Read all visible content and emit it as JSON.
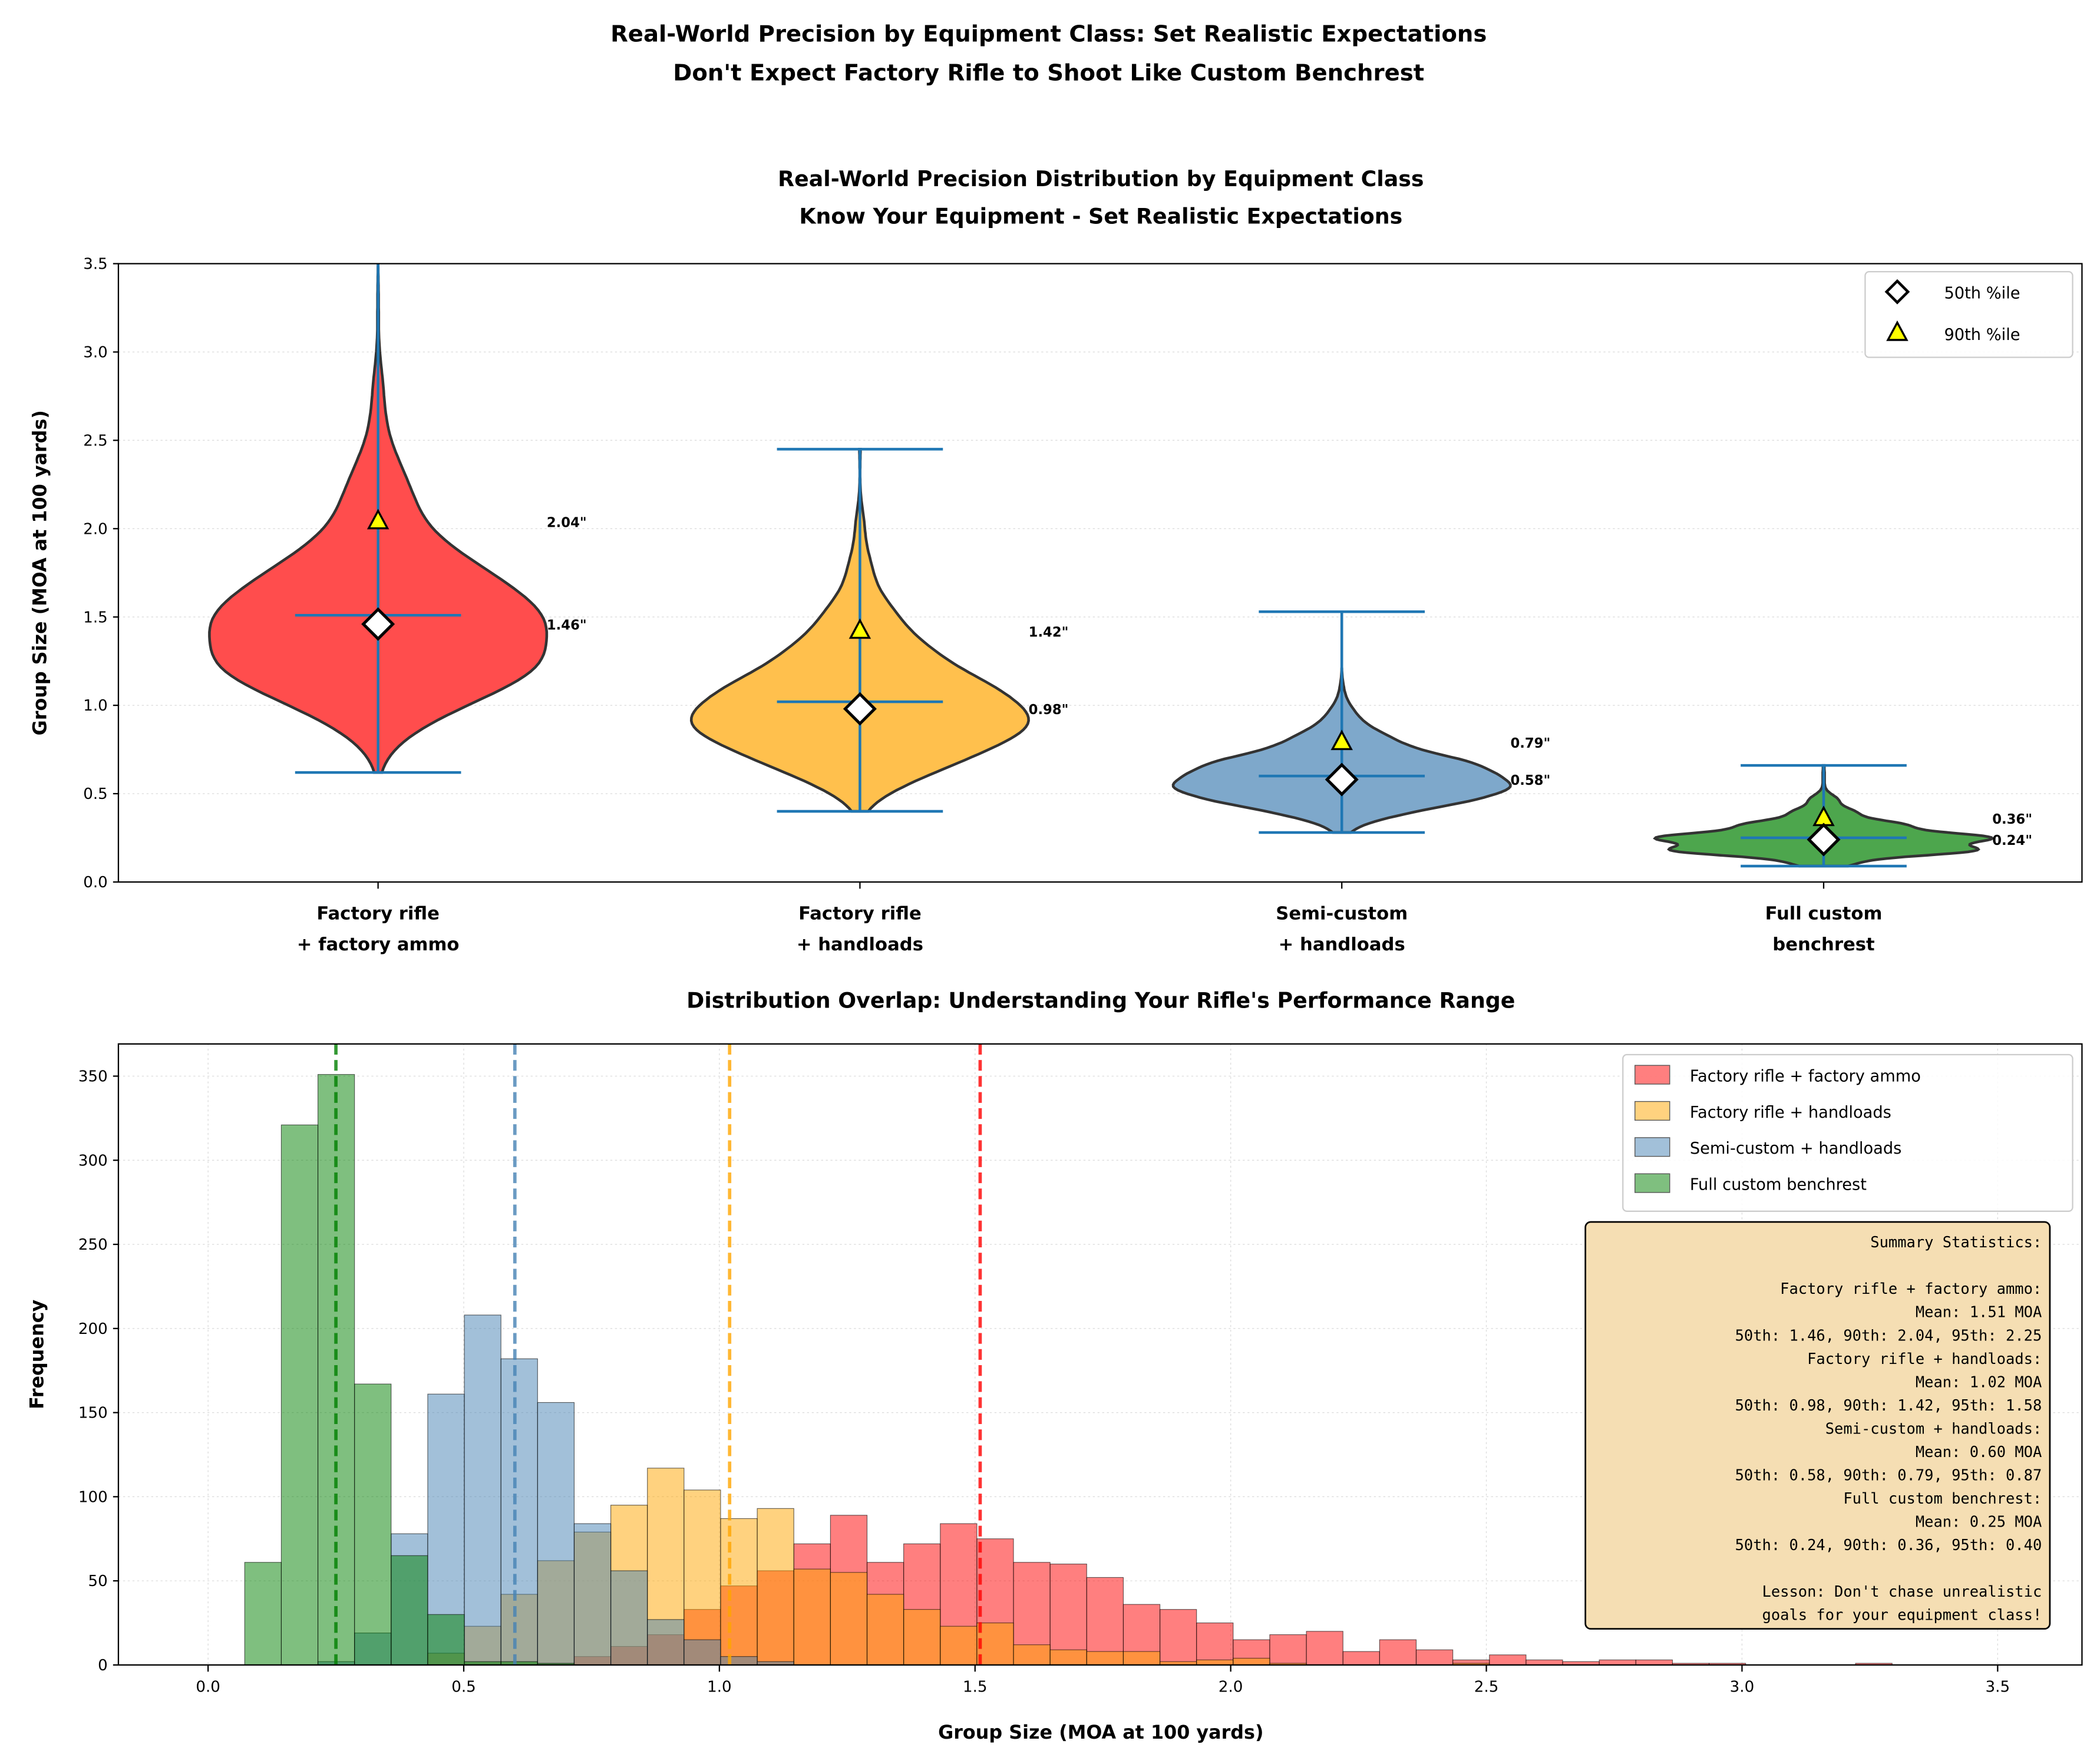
{
  "figure": {
    "title_line1": "Real-World Precision by Equipment Class: Set Realistic Expectations",
    "title_line2": "Don't Expect Factory Rifle to Shoot Like Custom Benchrest"
  },
  "colors": {
    "red": "#ff0000",
    "orange": "#ffa500",
    "steelblue": "#4682b4",
    "green": "#008000",
    "stat_line": "#1f77b4",
    "summary_box": "#f5deb3"
  },
  "chart_data": [
    {
      "type": "violin",
      "title_line1": "Real-World Precision Distribution by Equipment Class",
      "title_line2": "Know Your Equipment - Set Realistic Expectations",
      "xlabel": "",
      "ylabel": "Group Size (MOA at 100 yards)",
      "ylim": [
        0,
        3.5
      ],
      "yticks": [
        "0.0",
        "0.5",
        "1.0",
        "1.5",
        "2.0",
        "2.5",
        "3.0",
        "3.5"
      ],
      "grid": true,
      "legend_position": "top-right",
      "legend": [
        {
          "label": "50th %ile",
          "marker": "diamond"
        },
        {
          "label": "90th %ile",
          "marker": "triangle"
        }
      ],
      "categories": [
        {
          "line1": "Factory rifle",
          "line2": "+ factory ammo",
          "color": "#ff0000",
          "min": 0.62,
          "max": 3.6,
          "mean": 1.51,
          "p50": 1.46,
          "p90": 2.04,
          "p50_label": "1.46\"",
          "p90_label": "2.04\""
        },
        {
          "line1": "Factory rifle",
          "line2": "+ handloads",
          "color": "#ffa500",
          "min": 0.4,
          "max": 2.45,
          "mean": 1.02,
          "p50": 0.98,
          "p90": 1.42,
          "p50_label": "0.98\"",
          "p90_label": "1.42\""
        },
        {
          "line1": "Semi-custom",
          "line2": "+ handloads",
          "color": "#4682b4",
          "min": 0.28,
          "max": 1.53,
          "mean": 0.6,
          "p50": 0.58,
          "p90": 0.79,
          "p50_label": "0.58\"",
          "p90_label": "0.79\""
        },
        {
          "line1": "Full custom",
          "line2": "benchrest",
          "color": "#008000",
          "min": 0.09,
          "max": 0.66,
          "mean": 0.25,
          "p50": 0.24,
          "p90": 0.36,
          "p50_label": "0.24\"",
          "p90_label": "0.36\""
        }
      ]
    },
    {
      "type": "histogram",
      "title": "Distribution Overlap: Understanding Your Rifle's Performance Range",
      "xlabel": "Group Size (MOA at 100 yards)",
      "ylabel": "Frequency",
      "xlim": [
        -0.2,
        3.65
      ],
      "ylim": [
        0,
        370
      ],
      "xticks": [
        "0.0",
        "0.5",
        "1.0",
        "1.5",
        "2.0",
        "2.5",
        "3.0",
        "3.5"
      ],
      "yticks": [
        "0",
        "50",
        "100",
        "150",
        "200",
        "250",
        "300",
        "350"
      ],
      "grid": true,
      "legend_position": "top-right",
      "bin_width": 0.0716,
      "series": [
        {
          "name": "Factory rifle + factory ammo",
          "color": "#ff0000",
          "mean": 1.51,
          "counts": [
            0,
            0,
            0,
            0,
            0,
            0,
            0,
            0,
            0,
            0,
            5,
            11,
            18,
            33,
            47,
            56,
            72,
            89,
            61,
            72,
            84,
            75,
            61,
            60,
            52,
            36,
            33,
            25,
            15,
            18,
            20,
            8,
            15,
            9,
            3,
            6,
            3,
            2,
            3,
            3,
            1,
            1,
            0,
            0,
            0,
            1
          ]
        },
        {
          "name": "Factory rifle + handloads",
          "color": "#ffa500",
          "mean": 1.02,
          "counts": [
            0,
            0,
            0,
            0,
            0,
            0,
            7,
            23,
            42,
            62,
            79,
            95,
            117,
            104,
            87,
            93,
            57,
            55,
            42,
            33,
            23,
            25,
            12,
            9,
            8,
            8,
            2,
            3,
            4,
            1,
            0,
            0,
            0,
            0,
            1,
            0,
            0,
            0,
            0,
            0,
            0,
            0,
            0,
            0,
            0,
            0
          ]
        },
        {
          "name": "Semi-custom + handloads",
          "color": "#4682b4",
          "mean": 0.6,
          "counts": [
            0,
            0,
            0,
            2,
            19,
            78,
            161,
            208,
            182,
            156,
            84,
            56,
            27,
            15,
            5,
            2,
            0,
            0,
            0,
            0,
            0,
            0,
            0,
            0,
            0,
            0,
            0,
            0,
            0,
            0,
            0,
            0,
            0,
            0,
            0,
            0,
            0,
            0,
            0,
            0,
            0,
            0,
            0,
            0,
            0,
            0
          ]
        },
        {
          "name": "Full custom benchrest",
          "color": "#008000",
          "mean": 0.25,
          "counts": [
            0,
            61,
            321,
            351,
            167,
            65,
            30,
            2,
            2,
            1,
            0,
            0,
            0,
            0,
            0,
            0,
            0,
            0,
            0,
            0,
            0,
            0,
            0,
            0,
            0,
            0,
            0,
            0,
            0,
            0,
            0,
            0,
            0,
            0,
            0,
            0,
            0,
            0,
            0,
            0,
            0,
            0,
            0,
            0,
            0,
            0
          ]
        }
      ],
      "summary_box": [
        "Summary Statistics:",
        "",
        "Factory rifle + factory ammo:",
        "Mean: 1.51 MOA",
        "50th: 1.46, 90th: 2.04, 95th: 2.25",
        "Factory rifle + handloads:",
        "Mean: 1.02 MOA",
        "50th: 0.98, 90th: 1.42, 95th: 1.58",
        "Semi-custom + handloads:",
        "Mean: 0.60 MOA",
        "50th: 0.58, 90th: 0.79, 95th: 0.87",
        "Full custom benchrest:",
        "Mean: 0.25 MOA",
        "50th: 0.24, 90th: 0.36, 95th: 0.40",
        "",
        "Lesson: Don't chase unrealistic",
        "goals for your equipment class!"
      ]
    }
  ]
}
